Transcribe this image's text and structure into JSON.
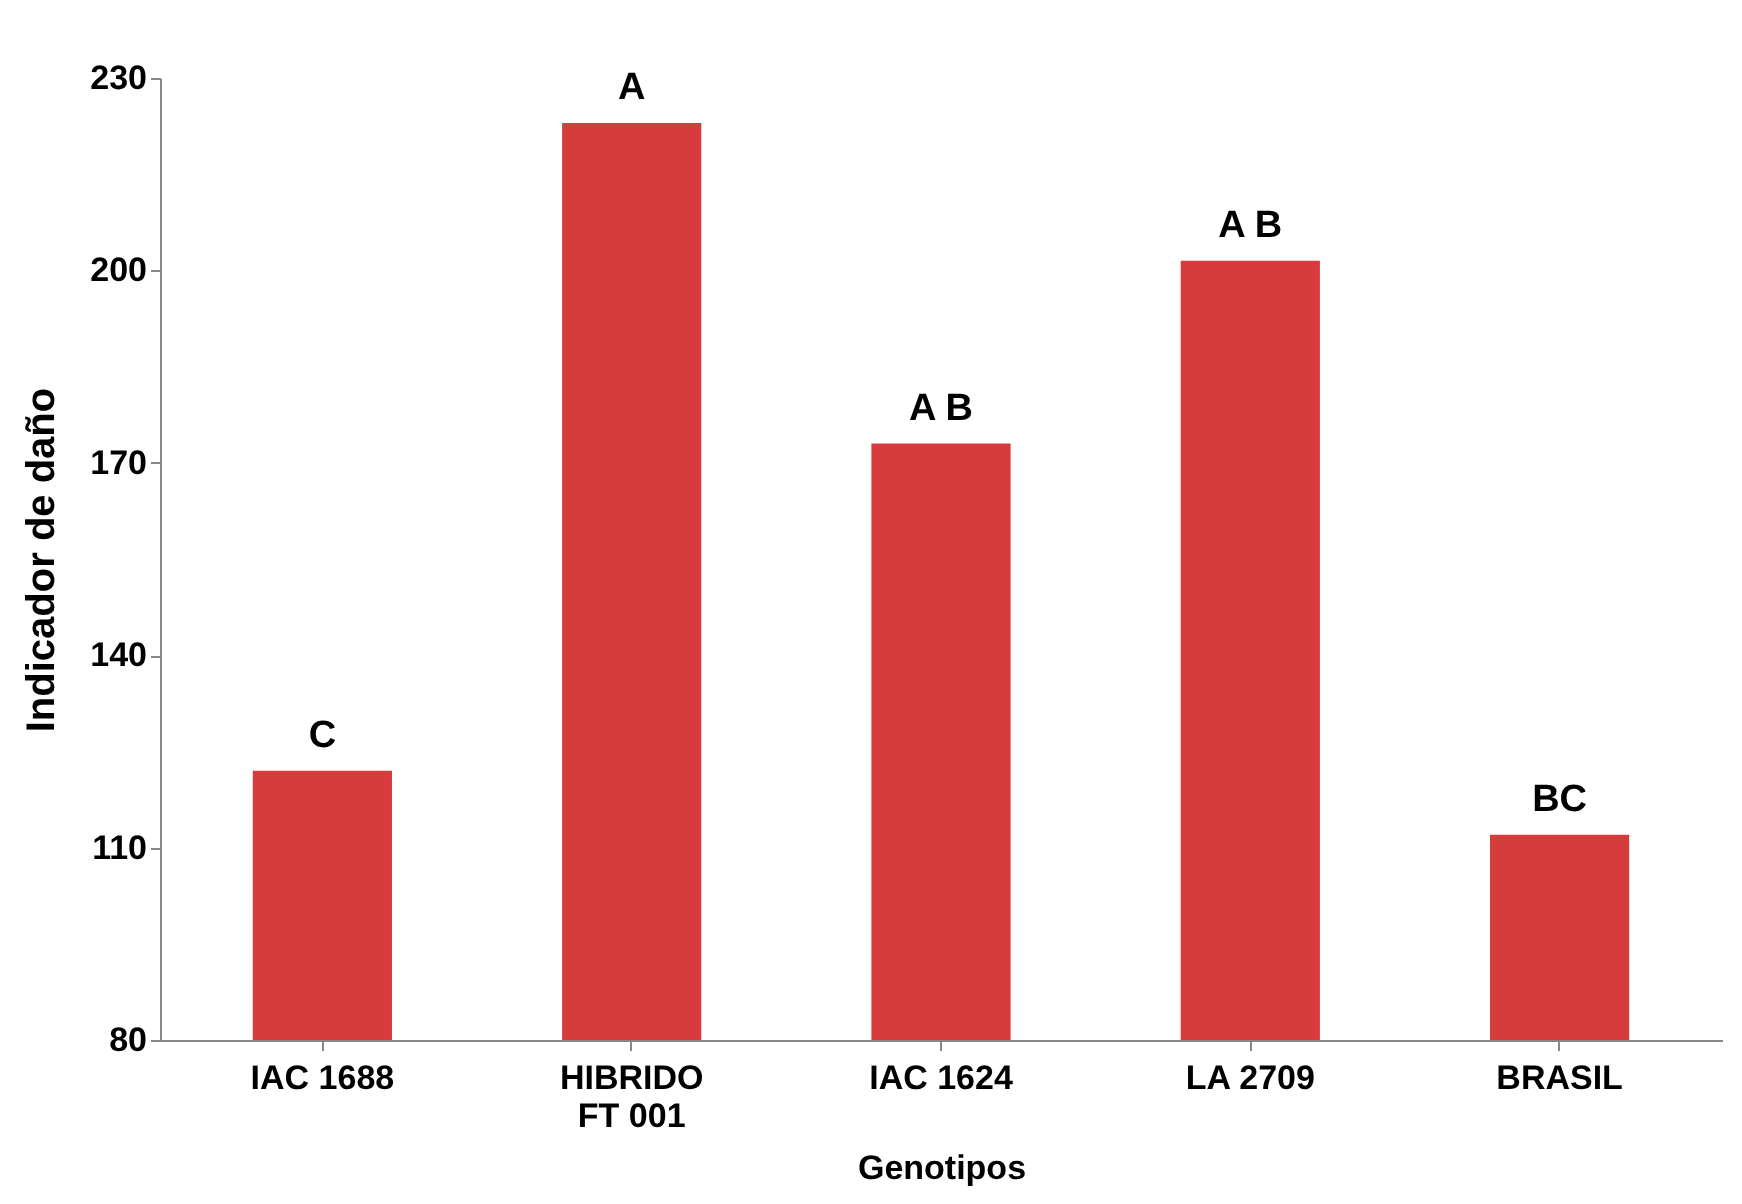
{
  "chart_data": {
    "type": "bar",
    "xlabel": "Genotipos",
    "ylabel": "Indicador de daño",
    "categories": [
      "IAC 1688",
      "HIBRIDO FT 001",
      "IAC 1624",
      "LA 2709",
      "BRASIL"
    ],
    "values": [
      122,
      223,
      173,
      201.5,
      112
    ],
    "color": "#d63c3c",
    "ylim": [
      80,
      230
    ],
    "yticks": [
      80,
      110,
      140,
      170,
      200,
      230
    ],
    "grid": false,
    "annotations": [
      {
        "text": "C",
        "x": "IAC 1688",
        "y": 122
      },
      {
        "text": "A",
        "x": "HIBRIDO FT 001",
        "y": 223
      },
      {
        "text": "A B",
        "x": "IAC 1624",
        "y": 173
      },
      {
        "text": "A B",
        "x": "LA 2709",
        "y": 201.5
      },
      {
        "text": "BC",
        "x": "BRASIL",
        "y": 112
      }
    ]
  }
}
